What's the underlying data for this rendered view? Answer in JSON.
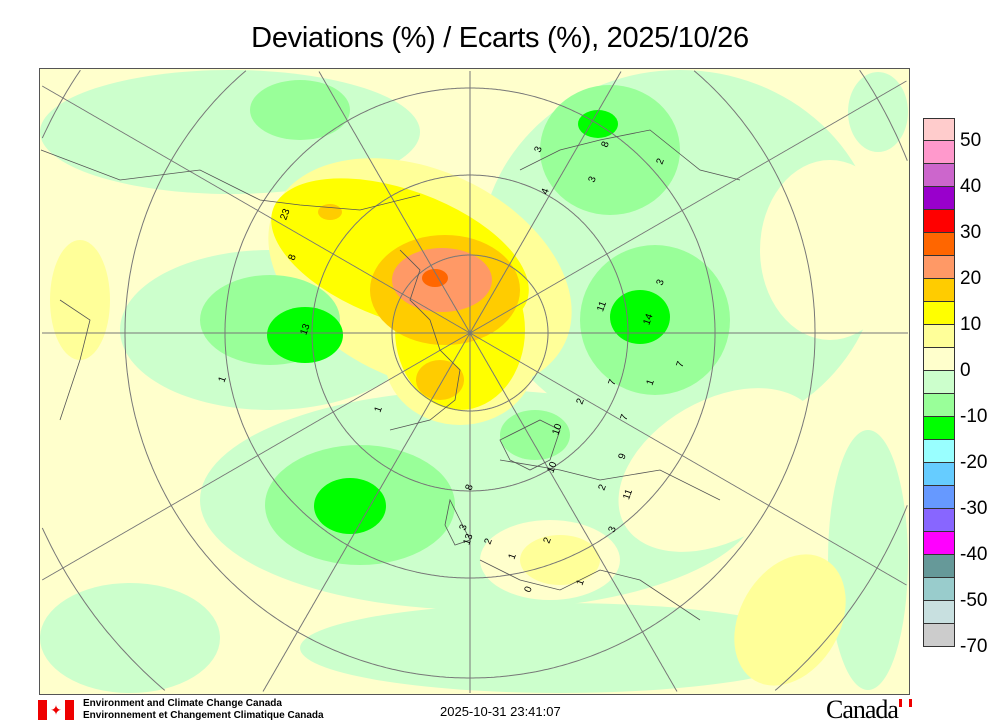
{
  "title": "Deviations (%) / Ecarts (%), 2025/10/26",
  "legend": {
    "colors": [
      "#ffcccc",
      "#ff99cc",
      "#cc66cc",
      "#9900cc",
      "#ff0000",
      "#ff6600",
      "#ff9966",
      "#ffcc00",
      "#ffff00",
      "#ffff99",
      "#ffffcc",
      "#ccffcc",
      "#99ff99",
      "#00ff00",
      "#99ffff",
      "#66ccff",
      "#6699ff",
      "#8866ff",
      "#ff00ff",
      "#669999",
      "#99cccc",
      "#c8e0e0",
      "#cccccc"
    ],
    "labels": [
      "50",
      "40",
      "30",
      "20",
      "10",
      "0",
      "-10",
      "-20",
      "-30",
      "-40",
      "-50",
      "-70"
    ]
  },
  "map": {
    "contour_labels": [
      "23",
      "8",
      "13",
      "1",
      "1",
      "14",
      "11",
      "3",
      "3",
      "8",
      "2",
      "3",
      "4",
      "7",
      "1",
      "7",
      "2",
      "7",
      "10",
      "10",
      "9",
      "2",
      "11",
      "8",
      "3",
      "13",
      "2",
      "1",
      "2",
      "3",
      "1",
      "0"
    ]
  },
  "footer": {
    "agency_en": "Environment and Climate Change Canada",
    "agency_fr": "Environnement et Changement Climatique Canada",
    "timestamp": "2025-10-31 23:41:07",
    "wordmark": "Canada"
  }
}
